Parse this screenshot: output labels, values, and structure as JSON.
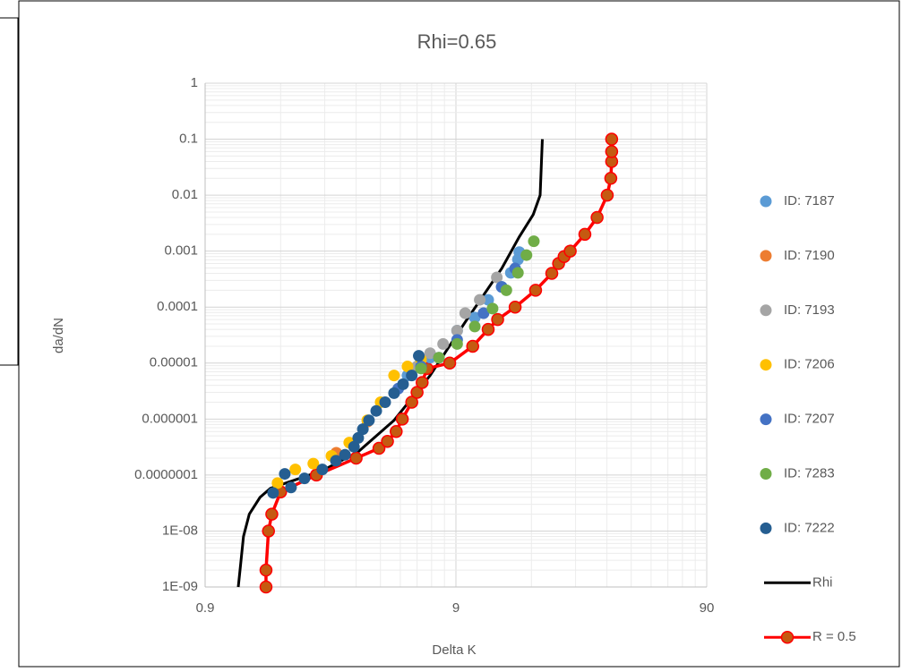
{
  "chart_data": {
    "type": "scatter",
    "title": "Rhi=0.65",
    "x_label": "Delta K",
    "y_label": "da/dN",
    "xscale": "log",
    "yscale": "log",
    "grid": true,
    "minor_grid": true,
    "legend": "right",
    "xlim": [
      0.9,
      90
    ],
    "xticks": [
      0.9,
      9,
      90
    ],
    "ylim": [
      1e-09,
      1
    ],
    "yticks": [
      {
        "value": 1e-09,
        "label": "1E-09"
      },
      {
        "value": 1e-08,
        "label": "1E-08"
      },
      {
        "value": 1e-07,
        "label": "0.0000001"
      },
      1e-06,
      1e-05,
      0.0001,
      0.001,
      0.01,
      0.1,
      1
    ],
    "series": [
      {
        "name": "ID: 7187",
        "color": "#5b9bd5",
        "mode": "markers",
        "x": [
          5.77,
          7.1,
          9.1,
          10.7,
          12.1,
          13.7,
          14.9,
          15.9,
          16.1
        ],
        "values": [
          6e-06,
          1.25e-05,
          3.8e-05,
          6.5e-05,
          0.000135,
          0.00023,
          0.00041,
          0.00071,
          0.00096
        ]
      },
      {
        "name": "ID: 7190",
        "color": "#ed7d31",
        "mode": "markers",
        "x": [
          3.0,
          3.5,
          4.0
        ],
        "values": [
          2.5e-07,
          3.5e-07,
          9e-07
        ]
      },
      {
        "name": "ID: 7193",
        "color": "#a5a5a5",
        "mode": "markers",
        "x": [
          6.3,
          7.1,
          8.0,
          9.1,
          9.8,
          11.2,
          13.1
        ],
        "values": [
          8.7e-06,
          1.5e-05,
          2.2e-05,
          3.8e-05,
          7.8e-05,
          0.000135,
          0.00034
        ]
      },
      {
        "name": "ID: 7206",
        "color": "#ffc000",
        "mode": "markers",
        "x": [
          1.75,
          2.06,
          2.43,
          2.87,
          3.38,
          3.99,
          4.51,
          5.1,
          5.77,
          6.53
        ],
        "values": [
          7.2e-08,
          1.26e-07,
          1.6e-07,
          2.2e-07,
          3.8e-07,
          9.5e-07,
          2e-06,
          6e-06,
          8.7e-06,
          1.15e-05
        ]
      },
      {
        "name": "ID: 7207",
        "color": "#4472c4",
        "mode": "markers",
        "x": [
          5.3,
          6.53,
          7.7,
          9.1,
          11.6,
          13.7,
          15.5
        ],
        "values": [
          3.5e-06,
          8.7e-06,
          1.25e-05,
          2.6e-05,
          7.8e-05,
          0.00023,
          0.00049
        ]
      },
      {
        "name": "ID: 7283",
        "color": "#70ad47",
        "mode": "markers",
        "x": [
          6.53,
          7.7,
          9.1,
          10.7,
          12.6,
          14.3,
          15.9,
          17.2,
          18.4
        ],
        "values": [
          8e-06,
          1.25e-05,
          2.2e-05,
          4.5e-05,
          9.4e-05,
          0.0002,
          0.00041,
          0.00085,
          0.0015
        ]
      },
      {
        "name": "ID: 7222",
        "color": "#255e91",
        "mode": "markers",
        "x": [
          1.68,
          1.87,
          1.98,
          2.24,
          2.64,
          2.99,
          3.25,
          3.53,
          3.67,
          3.83,
          4.05,
          4.33,
          4.7,
          5.1,
          5.54,
          6.0,
          6.4
        ],
        "values": [
          4.8e-08,
          1.05e-07,
          6e-08,
          8.7e-08,
          1.26e-07,
          1.8e-07,
          2.3e-07,
          3.2e-07,
          4.6e-07,
          6.6e-07,
          9.5e-07,
          1.4e-06,
          2e-06,
          2.9e-06,
          4.2e-06,
          6e-06,
          1.35e-05
        ]
      },
      {
        "name": "Rhi",
        "color": "#000000",
        "mode": "line",
        "x": [
          1.22,
          1.24,
          1.28,
          1.35,
          1.49,
          1.64,
          2.64,
          3.67,
          5.1,
          7.1,
          9.8,
          13.7,
          16.1,
          18.3,
          19.5,
          19.9
        ],
        "values": [
          1e-09,
          2e-09,
          8e-09,
          2e-08,
          4e-08,
          5.8e-08,
          1.2e-07,
          2.6e-07,
          9.5e-07,
          6e-06,
          5.4e-05,
          0.00049,
          0.0018,
          0.0045,
          0.01,
          0.1
        ]
      },
      {
        "name": "R = 0.5",
        "color": "#ff0000",
        "marker_color": "#c55a11",
        "mode": "line+markers",
        "x": [
          1.574,
          1.574,
          1.61,
          1.66,
          1.8,
          2.5,
          3.6,
          4.44,
          4.8,
          5.2,
          5.5,
          6.0,
          6.3,
          6.6,
          6.9,
          8.5,
          10.5,
          12.1,
          13.2,
          15.5,
          18.7,
          21.7,
          23.1,
          24.3,
          25.7,
          29.4,
          32.9,
          36.1,
          37.3,
          37.6,
          37.6,
          37.6
        ],
        "values": [
          1e-09,
          2e-09,
          1e-08,
          2e-08,
          5e-08,
          1e-07,
          2e-07,
          3e-07,
          4e-07,
          6e-07,
          1e-06,
          2e-06,
          3e-06,
          4.5e-06,
          8e-06,
          1e-05,
          2e-05,
          4e-05,
          6e-05,
          0.0001,
          0.0002,
          0.0004,
          0.0006,
          0.0008,
          0.001,
          0.002,
          0.004,
          0.01,
          0.02,
          0.04,
          0.06,
          0.1
        ]
      }
    ]
  }
}
